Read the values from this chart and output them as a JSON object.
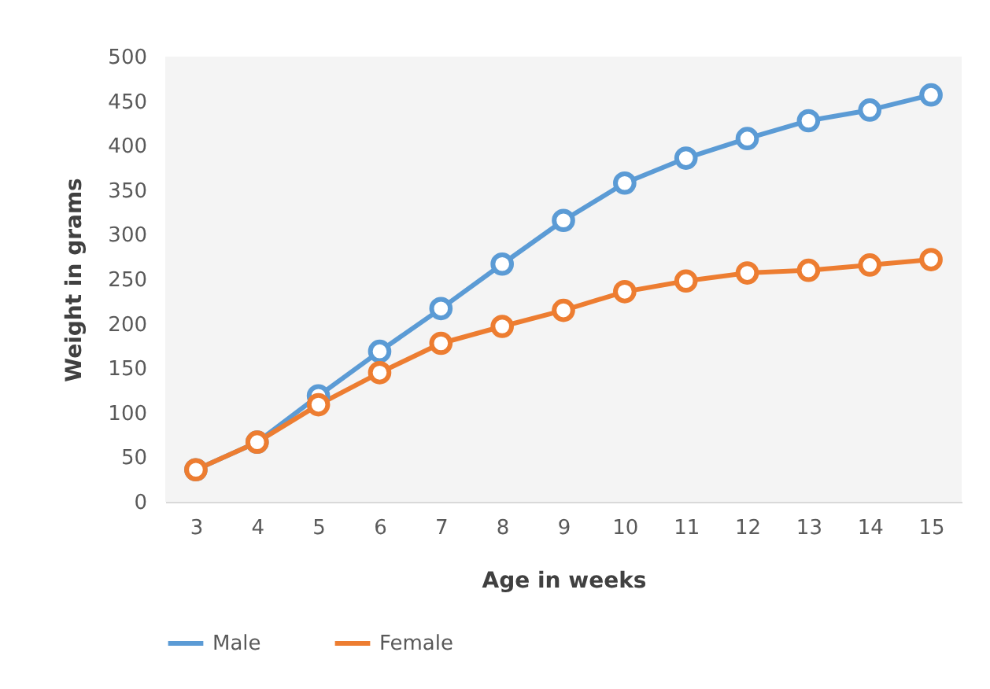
{
  "chart_data": {
    "type": "line",
    "xlabel": "Age in weeks",
    "ylabel": "Weight in grams",
    "categories": [
      "3",
      "4",
      "5",
      "6",
      "7",
      "8",
      "9",
      "10",
      "11",
      "12",
      "13",
      "14",
      "15"
    ],
    "series": [
      {
        "name": "Male",
        "color": "#5b9bd5",
        "values": [
          36,
          67,
          119,
          169,
          217,
          267,
          316,
          358,
          386,
          408,
          428,
          440,
          457
        ]
      },
      {
        "name": "Female",
        "color": "#ed7d31",
        "values": [
          36,
          67,
          109,
          145,
          178,
          197,
          215,
          236,
          248,
          257,
          260,
          266,
          272
        ]
      }
    ],
    "ylim": [
      0,
      500
    ],
    "yticks": [
      0,
      50,
      100,
      150,
      200,
      250,
      300,
      350,
      400,
      450,
      500
    ],
    "grid": false,
    "legend": "bottom",
    "marker": "circle",
    "line_style": "solid"
  }
}
